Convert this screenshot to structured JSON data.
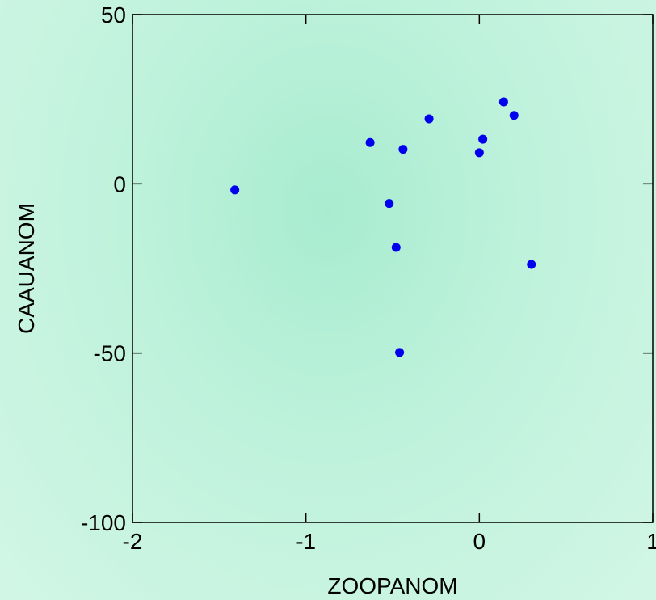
{
  "chart_data": {
    "type": "scatter",
    "xlabel": "ZOOPANOM",
    "ylabel": "CAAUANOM",
    "xlim": [
      -2,
      1
    ],
    "ylim": [
      -100,
      50
    ],
    "xticks": [
      -2,
      -1,
      0,
      1
    ],
    "yticks": [
      -100,
      -50,
      0,
      50
    ],
    "grid": false,
    "marker_color": "#0000ee",
    "points": [
      {
        "x": -1.41,
        "y": -1.8
      },
      {
        "x": -0.63,
        "y": 12.2
      },
      {
        "x": -0.44,
        "y": 10.2
      },
      {
        "x": -0.52,
        "y": -5.8
      },
      {
        "x": -0.48,
        "y": -18.8
      },
      {
        "x": -0.46,
        "y": -49.8
      },
      {
        "x": -0.29,
        "y": 19.2
      },
      {
        "x": 0.0,
        "y": 9.2
      },
      {
        "x": 0.02,
        "y": 13.2
      },
      {
        "x": 0.14,
        "y": 24.2
      },
      {
        "x": 0.2,
        "y": 20.2
      },
      {
        "x": 0.3,
        "y": -23.8
      }
    ]
  }
}
